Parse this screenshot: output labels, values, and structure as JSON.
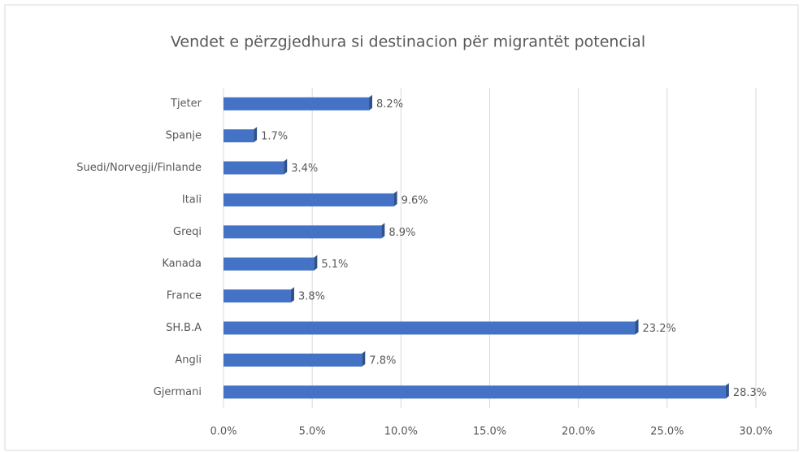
{
  "chart_data": {
    "type": "bar",
    "orientation": "horizontal",
    "title": "Vendet e përzgjedhura si destinacion për migrantët potencial",
    "categories": [
      "Gjermani",
      "Angli",
      "SH.B.A",
      "France",
      "Kanada",
      "Greqi",
      "Itali",
      "Suedi/Norvegji/Finlande",
      "Spanje",
      "Tjeter"
    ],
    "values": [
      28.3,
      7.8,
      23.2,
      3.8,
      5.1,
      8.9,
      9.6,
      3.4,
      1.7,
      8.2
    ],
    "value_labels": [
      "28.3%",
      "7.8%",
      "23.2%",
      "3.8%",
      "5.1%",
      "8.9%",
      "9.6%",
      "3.4%",
      "1.7%",
      "8.2%"
    ],
    "color": "#4472c4",
    "xlim": [
      0,
      30
    ],
    "xticks": [
      {
        "value": 0,
        "label": "0.0%"
      },
      {
        "value": 5,
        "label": "5.0%"
      },
      {
        "value": 10,
        "label": "10.0%"
      },
      {
        "value": 15,
        "label": "15.0%"
      },
      {
        "value": 20,
        "label": "20.0%"
      },
      {
        "value": 25,
        "label": "25.0%"
      },
      {
        "value": 30,
        "label": "30.0%"
      }
    ],
    "grid": true
  }
}
